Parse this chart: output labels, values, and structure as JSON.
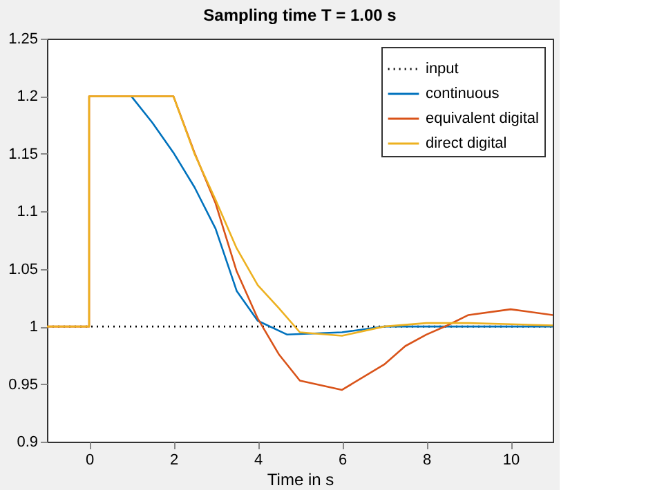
{
  "chart_data": {
    "type": "line",
    "title": "Sampling time T = 1.00 s",
    "xlabel": "Time in s",
    "xlim": [
      -1,
      11
    ],
    "xticks": [
      0,
      2,
      4,
      6,
      8,
      10
    ],
    "ylim": [
      0.9,
      1.25
    ],
    "yticks": [
      0.9,
      0.95,
      1,
      1.05,
      1.1,
      1.15,
      1.2,
      1.25
    ],
    "grid": false,
    "legend": "top right",
    "marker": "none",
    "series": [
      {
        "name": "input",
        "color": "#000000",
        "line_style": "dotted",
        "x": [
          -1,
          11
        ],
        "values": [
          1,
          1
        ]
      },
      {
        "name": "continuous",
        "color": "#0072bd",
        "line_style": "solid",
        "x": [
          1,
          1.5,
          2,
          2.5,
          3,
          3.5,
          4,
          4.7,
          6,
          7,
          8,
          9,
          10,
          11
        ],
        "values": [
          1.2,
          1.177,
          1.151,
          1.121,
          1.085,
          1.031,
          1.005,
          0.993,
          0.995,
          1.0,
          1.0,
          1.0,
          1.0,
          1.0
        ]
      },
      {
        "name": "equivalent digital",
        "color": "#d95319",
        "line_style": "solid",
        "x": [
          -1,
          0,
          0,
          2,
          2.5,
          3,
          3.5,
          4,
          4.5,
          5,
          6,
          7,
          7.5,
          8,
          8.5,
          9,
          10,
          11
        ],
        "values": [
          1,
          1,
          1.2,
          1.2,
          1.151,
          1.107,
          1.048,
          1.007,
          0.976,
          0.953,
          0.945,
          0.967,
          0.983,
          0.993,
          1.001,
          1.01,
          1.015,
          1.01
        ]
      },
      {
        "name": "direct digital",
        "color": "#edb120",
        "line_style": "solid",
        "x": [
          -1,
          0,
          0,
          2,
          2.5,
          3,
          3.5,
          4,
          4.5,
          5,
          6,
          7,
          8,
          9,
          10,
          11
        ],
        "values": [
          1,
          1,
          1.2,
          1.2,
          1.15,
          1.11,
          1.068,
          1.036,
          1.016,
          0.995,
          0.992,
          1.0,
          1.003,
          1.003,
          1.002,
          1.001
        ]
      }
    ]
  }
}
